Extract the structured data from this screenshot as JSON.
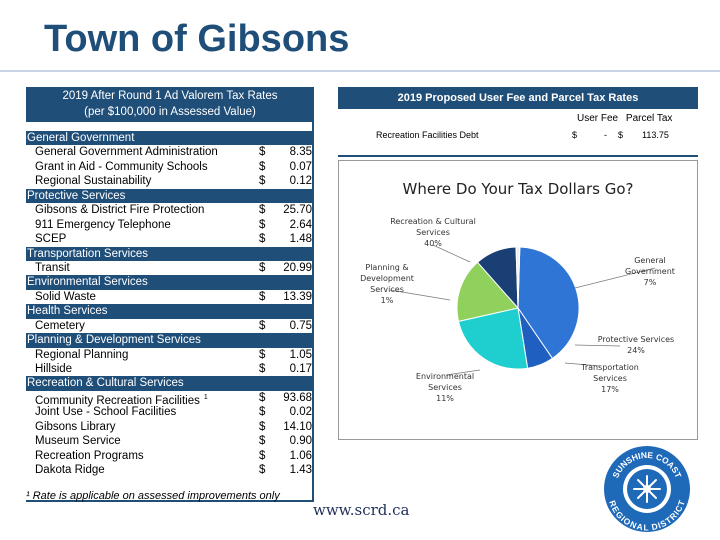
{
  "page": {
    "title": "Town of Gibsons",
    "url": "www.scrd.ca"
  },
  "left": {
    "header_line1": "2019 After Round 1 Ad Valorem Tax Rates",
    "header_line2": "(per $100,000 in Assessed Value)",
    "rows": [
      {
        "type": "cat",
        "label": "General Government"
      },
      {
        "type": "item",
        "label": "General Government Administration",
        "cur": "$",
        "val": "8.35"
      },
      {
        "type": "item",
        "label": "Grant in Aid - Community Schools",
        "cur": "$",
        "val": "0.07"
      },
      {
        "type": "item",
        "label": "Regional Sustainability",
        "cur": "$",
        "val": "0.12"
      },
      {
        "type": "cat",
        "label": "Protective Services"
      },
      {
        "type": "item",
        "label": "Gibsons & District Fire Protection",
        "cur": "$",
        "val": "25.70"
      },
      {
        "type": "item",
        "label": "911 Emergency Telephone",
        "cur": "$",
        "val": "2.64"
      },
      {
        "type": "item",
        "label": "SCEP",
        "cur": "$",
        "val": "1.48"
      },
      {
        "type": "cat",
        "label": "Transportation Services"
      },
      {
        "type": "item",
        "label": "Transit",
        "cur": "$",
        "val": "20.99"
      },
      {
        "type": "cat",
        "label": "Environmental Services"
      },
      {
        "type": "item",
        "label": "Solid Waste",
        "cur": "$",
        "val": "13.39"
      },
      {
        "type": "cat",
        "label": "Health Services"
      },
      {
        "type": "item",
        "label": "Cemetery",
        "cur": "$",
        "val": "0.75"
      },
      {
        "type": "cat",
        "label": "Planning & Development Services"
      },
      {
        "type": "item",
        "label": "Regional Planning",
        "cur": "$",
        "val": "1.05"
      },
      {
        "type": "item",
        "label": "Hillside",
        "cur": "$",
        "val": "0.17"
      },
      {
        "type": "cat",
        "label": "Recreation & Cultural Services"
      },
      {
        "type": "item",
        "label": "Community Recreation Facilities",
        "sup": "1",
        "cur": "$",
        "val": "93.68"
      },
      {
        "type": "item",
        "label": "Joint Use - School Facilities",
        "cur": "$",
        "val": "0.02"
      },
      {
        "type": "item",
        "label": "Gibsons Library",
        "cur": "$",
        "val": "14.10"
      },
      {
        "type": "item",
        "label": "Museum Service",
        "cur": "$",
        "val": "0.90"
      },
      {
        "type": "item",
        "label": "Recreation Programs",
        "cur": "$",
        "val": "1.06"
      },
      {
        "type": "item",
        "label": "Dakota Ridge",
        "cur": "$",
        "val": "1.43"
      }
    ],
    "footnote": "¹ Rate is applicable on assessed improvements only"
  },
  "right": {
    "header": "2019 Proposed User Fee and Parcel Tax Rates",
    "col_user_fee": "User Fee",
    "col_parcel_tax": "Parcel Tax",
    "fee_label": "Recreation Facilities Debt",
    "fee_cur1": "$",
    "fee_user_value": "-",
    "fee_cur2": "$",
    "fee_parcel_value": "113.75"
  },
  "chart_data": {
    "type": "pie",
    "title": "Where Do Your Tax Dollars Go?",
    "slices": [
      {
        "name": "Recreation & Cultural Services",
        "value": 40,
        "label": "40%",
        "color": "#2e75d6"
      },
      {
        "name": "General Government",
        "value": 7,
        "label": "7%",
        "color": "#1f5fbf"
      },
      {
        "name": "Protective Services",
        "value": 24,
        "label": "24%",
        "color": "#1fcfcf"
      },
      {
        "name": "Transportation Services",
        "value": 17,
        "label": "17%",
        "color": "#8fd15c"
      },
      {
        "name": "Environmental Services",
        "value": 11,
        "label": "11%",
        "color": "#1a3f74"
      },
      {
        "name": "Planning & Development Services",
        "value": 1,
        "label": "1%",
        "color": "#f0f0f0"
      }
    ]
  },
  "logo": {
    "text_top": "SUNSHINE COAST",
    "text_bottom": "REGIONAL DISTRICT"
  }
}
